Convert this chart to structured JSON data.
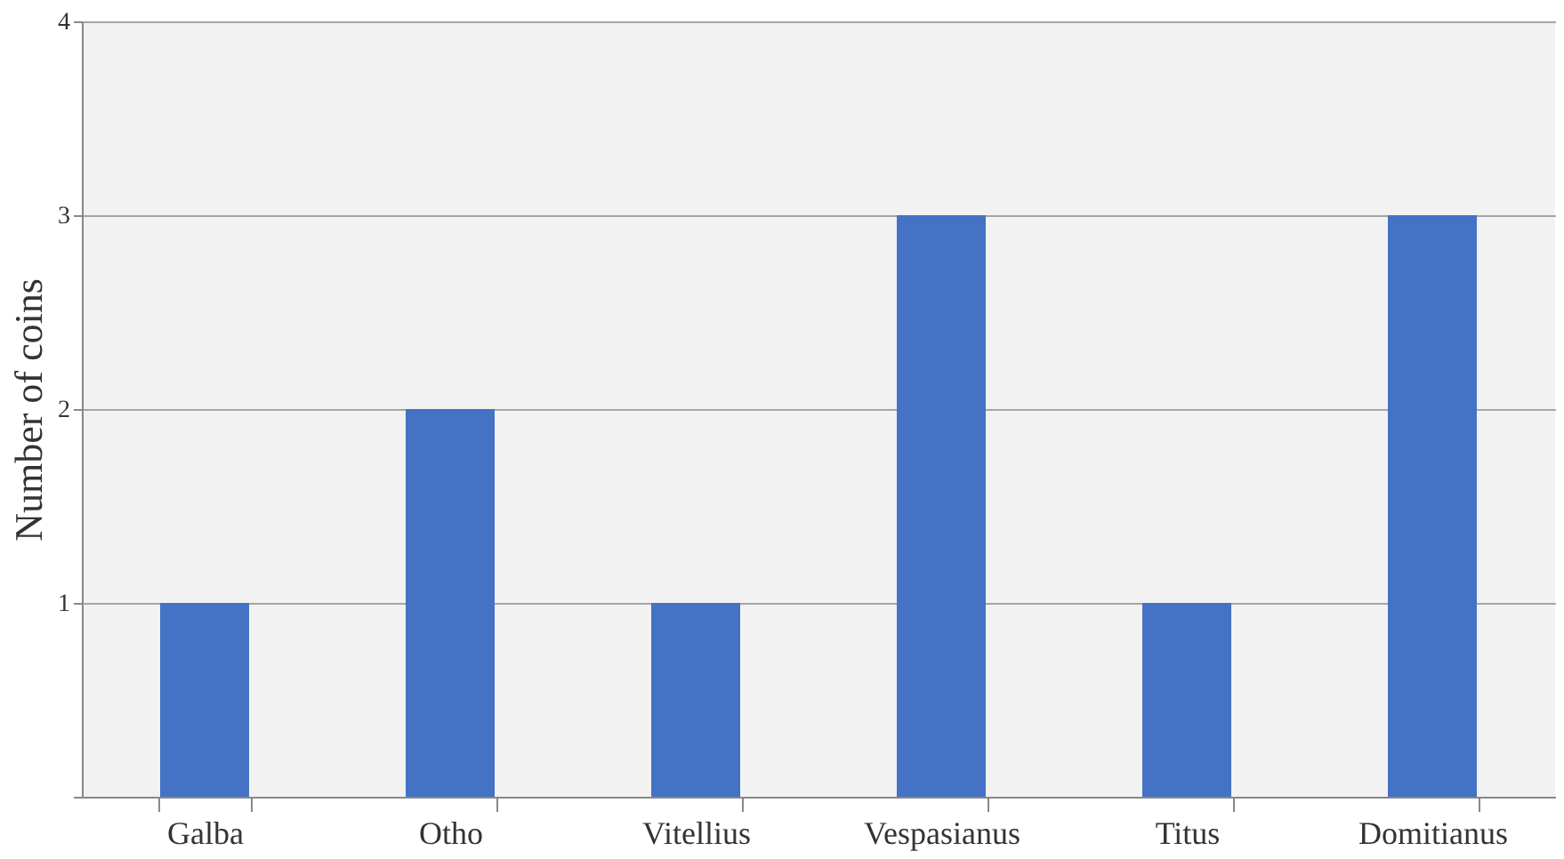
{
  "chart_data": {
    "type": "bar",
    "categories": [
      "Galba",
      "Otho",
      "Vitellius",
      "Vespasianus",
      "Titus",
      "Domitianus"
    ],
    "values": [
      1,
      2,
      1,
      3,
      1,
      3
    ],
    "color": "#4472c4",
    "ylabel": "Number of coins",
    "ylim": [
      0,
      4
    ],
    "yticks": [
      {
        "value": 0,
        "label": null
      },
      1,
      2,
      3,
      4
    ],
    "grid": "y"
  }
}
